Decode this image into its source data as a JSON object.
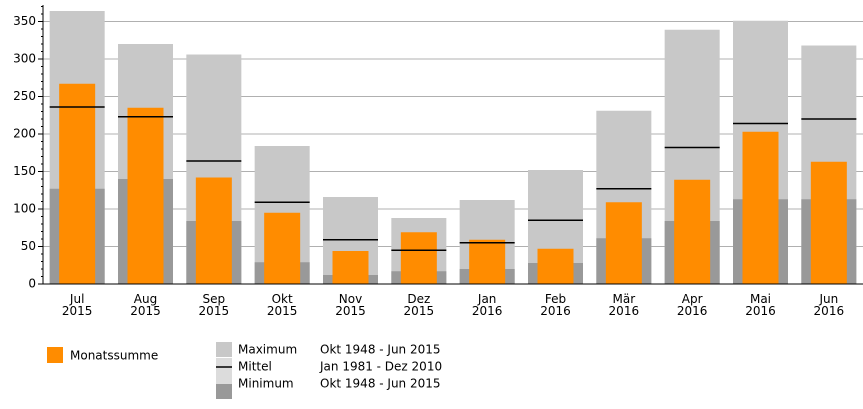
{
  "chart_data": {
    "type": "bar",
    "categories": [
      [
        "Jul",
        "2015"
      ],
      [
        "Aug",
        "2015"
      ],
      [
        "Sep",
        "2015"
      ],
      [
        "Okt",
        "2015"
      ],
      [
        "Nov",
        "2015"
      ],
      [
        "Dez",
        "2015"
      ],
      [
        "Jan",
        "2016"
      ],
      [
        "Feb",
        "2016"
      ],
      [
        "Mär",
        "2016"
      ],
      [
        "Apr",
        "2016"
      ],
      [
        "Mai",
        "2016"
      ],
      [
        "Jun",
        "2016"
      ]
    ],
    "series": [
      {
        "name": "Maximum",
        "period": "Okt 1948 - Jun 2015",
        "color": "#c8c8c8",
        "values": [
          364,
          320,
          306,
          184,
          116,
          88,
          112,
          152,
          231,
          339,
          351,
          318
        ]
      },
      {
        "name": "Minimum",
        "period": "Okt 1948 - Jun 2015",
        "color": "#999999",
        "values": [
          127,
          140,
          84,
          29,
          12,
          17,
          20,
          28,
          61,
          84,
          113,
          113
        ]
      },
      {
        "name": "Monatssumme",
        "color": "#ff8c00",
        "values": [
          267,
          235,
          142,
          95,
          44,
          69,
          59,
          47,
          109,
          139,
          203,
          163
        ]
      },
      {
        "name": "Mittel",
        "period": "Jan 1981 - Dez 2010",
        "color": "#000000",
        "values": [
          236,
          223,
          164,
          109,
          59,
          45,
          55,
          85,
          127,
          182,
          214,
          220
        ]
      }
    ],
    "ylim": [
      0,
      372
    ],
    "yticks": [
      0,
      50,
      100,
      150,
      200,
      250,
      300,
      350
    ],
    "grid": true
  }
}
